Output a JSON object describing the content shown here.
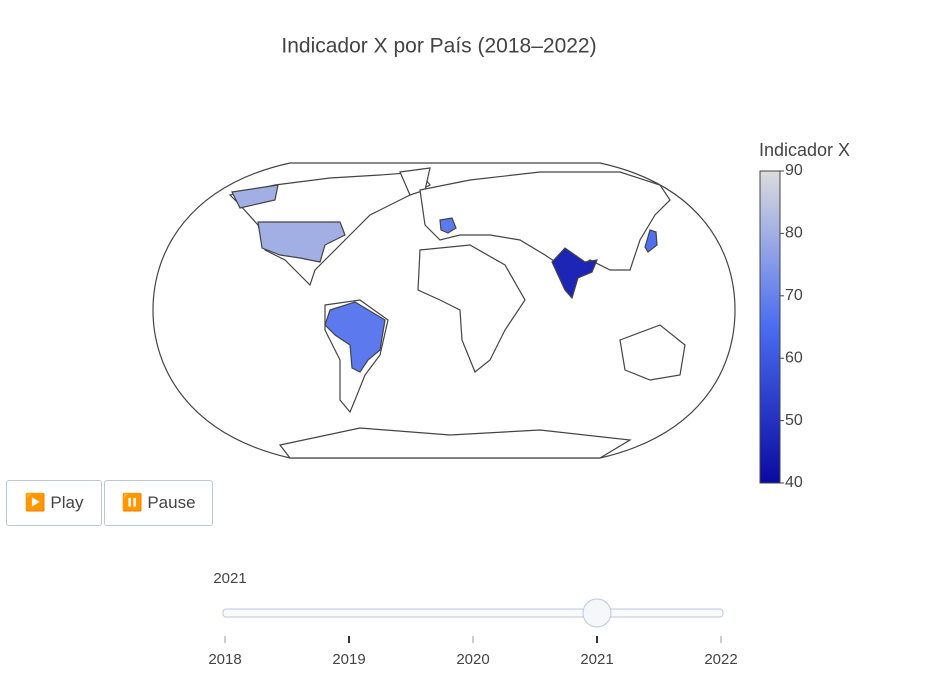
{
  "chart_data": {
    "type": "choropleth",
    "title": "Indicador X por País (2018–2022)",
    "locations": [
      "USA",
      "FRA",
      "BRA",
      "IND",
      "JPN"
    ],
    "values": [
      80,
      68,
      68,
      47,
      66
    ],
    "colorbar": {
      "title": "Indicador X",
      "clim": [
        40,
        90
      ],
      "ticks": [
        40,
        50,
        60,
        70,
        80,
        90
      ],
      "colorscale": [
        [
          0,
          "#0a0aa0"
        ],
        [
          0.5,
          "#4a6cf0"
        ],
        [
          1,
          "#dcdcdc"
        ]
      ]
    },
    "buttons": [
      "▶️ Play",
      "⏸️ Pause"
    ],
    "slider": {
      "steps": [
        "2018",
        "2019",
        "2020",
        "2021",
        "2022"
      ],
      "active": 3,
      "current_label": "2021"
    }
  }
}
